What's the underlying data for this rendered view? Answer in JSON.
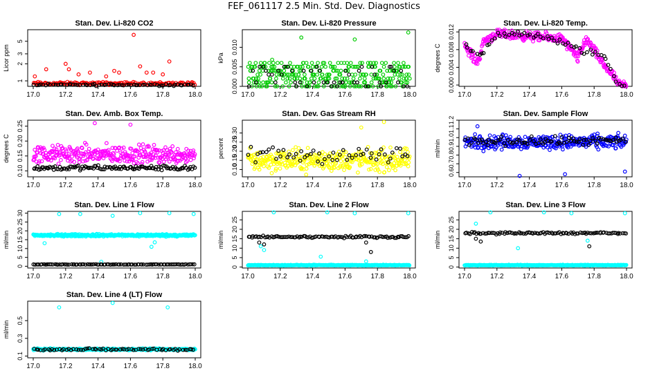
{
  "page": {
    "title": "FEF_061117  2.5 Min. Std. Dev. Diagnostics"
  },
  "colors": {
    "black": "#000000",
    "red": "#ff0000",
    "green": "#00cc00",
    "magenta": "#ff00ff",
    "yellow": "#ffff00",
    "blue": "#0000ff",
    "cyan": "#00ffff"
  },
  "chart_data": [
    {
      "type": "scatter",
      "title": "Stan. Dev. Li-820 CO2",
      "ylabel": "Licor ppm",
      "xlabel": "",
      "xlim": [
        17.0,
        18.0
      ],
      "ylim": [
        0.8,
        8.0
      ],
      "log_y": true,
      "xticks": [
        "17.0",
        "17.2",
        "17.4",
        "17.6",
        "17.8",
        "18.0"
      ],
      "yticks": [
        1,
        2,
        3,
        5
      ],
      "series": [
        {
          "name": "primary",
          "color": "#ff0000",
          "base": 0.9,
          "spread": 0.08,
          "n": 140,
          "outliers": [
            [
              17.01,
              1.2
            ],
            [
              17.08,
              1.6
            ],
            [
              17.2,
              2.0
            ],
            [
              17.22,
              1.6
            ],
            [
              17.28,
              1.3
            ],
            [
              17.35,
              1.4
            ],
            [
              17.45,
              1.2
            ],
            [
              17.5,
              1.5
            ],
            [
              17.53,
              1.4
            ],
            [
              17.62,
              6.5
            ],
            [
              17.66,
              1.8
            ],
            [
              17.7,
              1.4
            ],
            [
              17.74,
              1.4
            ],
            [
              17.8,
              1.3
            ],
            [
              17.84,
              2.2
            ]
          ]
        },
        {
          "name": "secondary",
          "color": "#000000",
          "base": 0.85,
          "spread": 0.05,
          "n": 70,
          "outliers": []
        }
      ]
    },
    {
      "type": "scatter",
      "title": "Stan. Dev. Li-820 Pressure",
      "ylabel": "kPa",
      "xlabel": "",
      "xlim": [
        17.0,
        18.0
      ],
      "ylim": [
        0.0,
        0.0145
      ],
      "log_y": false,
      "xticks": [
        "17.0",
        "17.2",
        "17.4",
        "17.6",
        "17.8",
        "18.0"
      ],
      "yticks": [
        0.0,
        0.005,
        0.01
      ],
      "series": [
        {
          "name": "primary",
          "color": "#00cc00",
          "levels": [
            0.0,
            0.001,
            0.002,
            0.003,
            0.004,
            0.005,
            0.006
          ],
          "n": 300,
          "outliers": [
            [
              17.33,
              0.0125
            ],
            [
              17.66,
              0.012
            ],
            [
              17.99,
              0.0138
            ],
            [
              17.15,
              0.0068
            ]
          ]
        },
        {
          "name": "secondary",
          "color": "#000000",
          "levels": [
            0.0,
            0.001,
            0.003,
            0.004,
            0.005
          ],
          "n": 50,
          "outliers": []
        }
      ]
    },
    {
      "type": "scatter",
      "title": "Stan. Dev. Li-820 Temp.",
      "ylabel": "degrees C",
      "xlabel": "",
      "xlim": [
        17.0,
        18.0
      ],
      "ylim": [
        -0.0003,
        0.0125
      ],
      "log_y": false,
      "xticks": [
        "17.0",
        "17.2",
        "17.4",
        "17.6",
        "17.8",
        "18.0"
      ],
      "yticks": [
        0.0,
        0.004,
        0.008,
        0.012
      ],
      "series": [
        {
          "name": "primary",
          "color": "#ff00ff",
          "profile": [
            [
              17.0,
              0.009
            ],
            [
              17.08,
              0.005
            ],
            [
              17.12,
              0.01
            ],
            [
              17.2,
              0.0115
            ],
            [
              17.4,
              0.011
            ],
            [
              17.6,
              0.0105
            ],
            [
              17.7,
              0.006
            ],
            [
              17.75,
              0.0105
            ],
            [
              17.85,
              0.005
            ],
            [
              17.92,
              0.002
            ],
            [
              17.95,
              0.0
            ],
            [
              18.0,
              0.0
            ]
          ],
          "spread": 0.0015,
          "n": 320,
          "outliers": []
        },
        {
          "name": "secondary",
          "color": "#000000",
          "profile": [
            [
              17.0,
              0.009
            ],
            [
              17.1,
              0.007
            ],
            [
              17.2,
              0.0115
            ],
            [
              17.5,
              0.011
            ],
            [
              17.7,
              0.008
            ],
            [
              17.85,
              0.007
            ],
            [
              17.95,
              0.0
            ],
            [
              18.0,
              0.0
            ]
          ],
          "spread": 0.0012,
          "n": 60,
          "outliers": []
        }
      ]
    },
    {
      "type": "scatter",
      "title": "Stan. Dev. Amb. Box Temp.",
      "ylabel": "degrees C",
      "xlabel": "",
      "xlim": [
        17.0,
        18.0
      ],
      "ylim": [
        0.08,
        0.27
      ],
      "log_y": false,
      "xticks": [
        "17.0",
        "17.2",
        "17.4",
        "17.6",
        "17.8",
        "18.0"
      ],
      "yticks": [
        0.1,
        0.15,
        0.2,
        0.25
      ],
      "series": [
        {
          "name": "primary",
          "color": "#ff00ff",
          "base": 0.155,
          "spread": 0.045,
          "n": 330,
          "outliers": [
            [
              17.38,
              0.26
            ],
            [
              17.6,
              0.255
            ]
          ]
        },
        {
          "name": "secondary",
          "color": "#000000",
          "base": 0.11,
          "spread": 0.012,
          "n": 120,
          "outliers": []
        }
      ]
    },
    {
      "type": "scatter",
      "title": "Stan. Dev. Gas Stream RH",
      "ylabel": "percent",
      "xlabel": "",
      "xlim": [
        17.0,
        18.0
      ],
      "ylim": [
        0.06,
        0.37
      ],
      "log_y": false,
      "xticks": [
        "17.0",
        "17.2",
        "17.4",
        "17.6",
        "17.8",
        "18.0"
      ],
      "yticks": [
        0.1,
        0.15,
        0.2,
        0.25,
        0.3
      ],
      "series": [
        {
          "name": "primary",
          "color": "#ffff00",
          "base": 0.15,
          "spread": 0.09,
          "n": 330,
          "outliers": [
            [
              17.84,
              0.36
            ],
            [
              17.7,
              0.33
            ]
          ]
        },
        {
          "name": "secondary",
          "color": "#000000",
          "base": 0.18,
          "spread": 0.07,
          "n": 55,
          "outliers": []
        }
      ]
    },
    {
      "type": "scatter",
      "title": "Stan. Dev. Sample Flow",
      "ylabel": "ml/min",
      "xlabel": "",
      "xlim": [
        17.0,
        18.0
      ],
      "ylim": [
        0.55,
        1.2
      ],
      "log_y": false,
      "xticks": [
        "17.0",
        "17.2",
        "17.4",
        "17.6",
        "17.8",
        "18.0"
      ],
      "yticks": [
        0.6,
        0.7,
        0.8,
        0.9,
        1.0,
        1.1,
        1.2
      ],
      "series": [
        {
          "name": "primary",
          "color": "#0000ff",
          "base": 0.95,
          "spread": 0.12,
          "n": 330,
          "outliers": [
            [
              17.34,
              0.56
            ],
            [
              17.62,
              0.58
            ],
            [
              17.99,
              0.61
            ],
            [
              17.08,
              1.13
            ]
          ]
        },
        {
          "name": "secondary",
          "color": "#000000",
          "base": 0.96,
          "spread": 0.07,
          "n": 80,
          "outliers": []
        }
      ]
    },
    {
      "type": "scatter",
      "title": "Stan. Dev. Line 1 Flow",
      "ylabel": "ml/min",
      "xlabel": "",
      "xlim": [
        17.0,
        18.0
      ],
      "ylim": [
        -1.0,
        31.0
      ],
      "log_y": false,
      "xticks": [
        "17.0",
        "17.2",
        "17.4",
        "17.6",
        "17.8",
        "18.0"
      ],
      "yticks": [
        0,
        5,
        10,
        15,
        20,
        25,
        30
      ],
      "series": [
        {
          "name": "primary",
          "color": "#00ffff",
          "base": 17.5,
          "spread": 1.0,
          "n": 330,
          "outliers": [
            [
              17.16,
              29.5
            ],
            [
              17.29,
              29.5
            ],
            [
              17.49,
              28.5
            ],
            [
              17.66,
              30
            ],
            [
              17.84,
              30
            ],
            [
              17.99,
              29.5
            ],
            [
              17.07,
              13
            ],
            [
              17.73,
              11
            ],
            [
              17.75,
              13.5
            ],
            [
              17.42,
              2.5
            ]
          ]
        },
        {
          "name": "secondary",
          "color": "#000000",
          "base": 1.0,
          "spread": 0.2,
          "n": 100,
          "outliers": []
        }
      ]
    },
    {
      "type": "scatter",
      "title": "Stan. Dev. Line 2 Flow",
      "ylabel": "ml/min",
      "xlabel": "",
      "xlim": [
        17.0,
        18.0
      ],
      "ylim": [
        -0.5,
        29.5
      ],
      "log_y": false,
      "xticks": [
        "17.0",
        "17.2",
        "17.4",
        "17.6",
        "17.8",
        "18.0"
      ],
      "yticks": [
        0,
        5,
        10,
        15,
        20,
        25
      ],
      "series": [
        {
          "name": "primary",
          "color": "#00ffff",
          "base": 1.0,
          "spread": 0.3,
          "n": 300,
          "outliers": [
            [
              17.16,
              29
            ],
            [
              17.49,
              29
            ],
            [
              17.66,
              28.5
            ],
            [
              17.99,
              28.5
            ],
            [
              17.45,
              5.5
            ],
            [
              17.73,
              3.0
            ],
            [
              17.08,
              11
            ],
            [
              17.1,
              9
            ]
          ]
        },
        {
          "name": "secondary",
          "color": "#000000",
          "base": 16.0,
          "spread": 0.8,
          "n": 100,
          "outliers": [
            [
              17.07,
              13
            ],
            [
              17.1,
              12
            ],
            [
              17.73,
              13
            ],
            [
              17.76,
              8
            ]
          ]
        }
      ]
    },
    {
      "type": "scatter",
      "title": "Stan. Dev. Line 3 Flow",
      "ylabel": "ml/min",
      "xlabel": "",
      "xlim": [
        17.0,
        18.0
      ],
      "ylim": [
        -0.5,
        29.5
      ],
      "log_y": false,
      "xticks": [
        "17.0",
        "17.2",
        "17.4",
        "17.6",
        "17.8",
        "18.0"
      ],
      "yticks": [
        0,
        5,
        10,
        15,
        20,
        25
      ],
      "series": [
        {
          "name": "primary",
          "color": "#00ffff",
          "base": 1.0,
          "spread": 0.3,
          "n": 300,
          "outliers": [
            [
              17.16,
              29
            ],
            [
              17.49,
              29
            ],
            [
              17.66,
              28.5
            ],
            [
              17.99,
              28.5
            ],
            [
              17.07,
              23
            ],
            [
              17.33,
              10
            ],
            [
              17.76,
              14
            ]
          ]
        },
        {
          "name": "secondary",
          "color": "#000000",
          "base": 18.0,
          "spread": 0.8,
          "n": 100,
          "outliers": [
            [
              17.07,
              15
            ],
            [
              17.1,
              13.5
            ],
            [
              17.77,
              11
            ]
          ]
        }
      ]
    },
    {
      "type": "scatter",
      "title": "Stan. Dev. Line 4 (LT) Flow",
      "ylabel": "ml/min",
      "xlabel": "",
      "xlim": [
        17.0,
        18.0
      ],
      "ylim": [
        0.08,
        0.72
      ],
      "log_y": false,
      "xticks": [
        "17.0",
        "17.2",
        "17.4",
        "17.6",
        "17.8",
        "18.0"
      ],
      "yticks": [
        0.1,
        0.3,
        0.5
      ],
      "series": [
        {
          "name": "primary",
          "color": "#00ffff",
          "base": 0.175,
          "spread": 0.015,
          "n": 330,
          "outliers": [
            [
              17.16,
              0.65
            ],
            [
              17.49,
              0.7
            ],
            [
              17.83,
              0.65
            ]
          ]
        },
        {
          "name": "secondary",
          "color": "#000000",
          "base": 0.175,
          "spread": 0.018,
          "n": 70,
          "outliers": []
        }
      ]
    }
  ]
}
